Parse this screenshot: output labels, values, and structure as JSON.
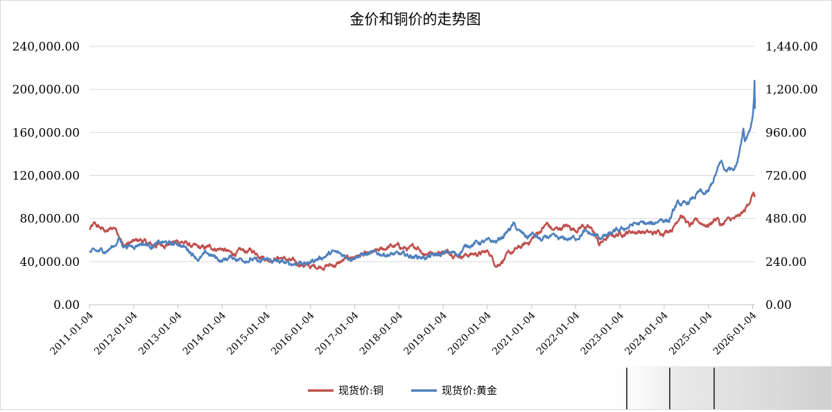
{
  "chart_data": {
    "type": "line",
    "title": "金价和铜价的走势图",
    "y_left": {
      "ticks": [
        "0.00",
        "40,000.00",
        "80,000.00",
        "120,000.00",
        "160,000.00",
        "200,000.00",
        "240,000.00"
      ],
      "range": [
        0,
        240000
      ]
    },
    "y_right": {
      "ticks": [
        "0.00",
        "240.00",
        "480.00",
        "720.00",
        "960.00",
        "1,200.00",
        "1,440.00"
      ],
      "range": [
        0,
        1440
      ]
    },
    "x_ticks": [
      "2011-01-04",
      "2012-01-04",
      "2013-01-04",
      "2014-01-04",
      "2015-01-04",
      "2016-01-04",
      "2017-01-04",
      "2018-01-04",
      "2019-01-04",
      "2020-01-04",
      "2021-01-04",
      "2022-01-04",
      "2023-01-04",
      "2024-01-04",
      "2025-01-04",
      "2026-01-04"
    ],
    "x_range": [
      "2011-01-04",
      "2026-01-24"
    ],
    "grid": true,
    "legend_position": "bottom",
    "series": [
      {
        "name": "现货价:铜",
        "axis": "left",
        "color": "#c0504d",
        "points": [
          [
            "2011-01-04",
            70000
          ],
          [
            "2011-02-15",
            74000
          ],
          [
            "2011-04-01",
            71000
          ],
          [
            "2011-06-01",
            68000
          ],
          [
            "2011-08-01",
            72000
          ],
          [
            "2011-09-20",
            63000
          ],
          [
            "2011-10-10",
            55000
          ],
          [
            "2011-12-01",
            57000
          ],
          [
            "2012-03-01",
            60000
          ],
          [
            "2012-06-01",
            55000
          ],
          [
            "2012-09-01",
            56000
          ],
          [
            "2012-12-01",
            58000
          ],
          [
            "2013-02-01",
            59000
          ],
          [
            "2013-04-15",
            55000
          ],
          [
            "2013-07-01",
            52000
          ],
          [
            "2013-10-01",
            53000
          ],
          [
            "2014-01-04",
            52000
          ],
          [
            "2014-03-20",
            47000
          ],
          [
            "2014-06-01",
            49000
          ],
          [
            "2014-09-01",
            50000
          ],
          [
            "2014-12-01",
            46000
          ],
          [
            "2015-01-20",
            42000
          ],
          [
            "2015-05-01",
            44000
          ],
          [
            "2015-08-01",
            40000
          ],
          [
            "2015-11-01",
            37000
          ],
          [
            "2016-01-10",
            35000
          ],
          [
            "2016-04-01",
            36000
          ],
          [
            "2016-08-01",
            37000
          ],
          [
            "2016-11-10",
            43000
          ],
          [
            "2017-01-04",
            45000
          ],
          [
            "2017-05-01",
            46000
          ],
          [
            "2017-08-01",
            50000
          ],
          [
            "2017-10-15",
            54000
          ],
          [
            "2018-01-04",
            54000
          ],
          [
            "2018-04-01",
            51000
          ],
          [
            "2018-06-10",
            54000
          ],
          [
            "2018-08-01",
            48000
          ],
          [
            "2018-12-01",
            49000
          ],
          [
            "2019-03-01",
            49000
          ],
          [
            "2019-06-01",
            46000
          ],
          [
            "2019-09-01",
            47000
          ],
          [
            "2019-12-01",
            48000
          ],
          [
            "2020-01-15",
            49000
          ],
          [
            "2020-03-20",
            37000
          ],
          [
            "2020-06-01",
            44000
          ],
          [
            "2020-09-01",
            51000
          ],
          [
            "2020-12-01",
            57000
          ],
          [
            "2021-03-01",
            67000
          ],
          [
            "2021-05-10",
            75000
          ],
          [
            "2021-07-01",
            69000
          ],
          [
            "2021-10-15",
            73000
          ],
          [
            "2022-01-04",
            70000
          ],
          [
            "2022-03-07",
            74000
          ],
          [
            "2022-06-01",
            68000
          ],
          [
            "2022-07-15",
            56000
          ],
          [
            "2022-10-01",
            63000
          ],
          [
            "2023-01-04",
            66000
          ],
          [
            "2023-04-01",
            68000
          ],
          [
            "2023-07-01",
            68000
          ],
          [
            "2023-10-01",
            66000
          ],
          [
            "2024-01-04",
            68000
          ],
          [
            "2024-03-20",
            72000
          ],
          [
            "2024-05-20",
            85000
          ],
          [
            "2024-08-01",
            73000
          ],
          [
            "2024-10-01",
            77000
          ],
          [
            "2025-01-04",
            74000
          ],
          [
            "2025-03-25",
            82000
          ],
          [
            "2025-04-10",
            73000
          ],
          [
            "2025-06-01",
            78000
          ],
          [
            "2025-09-01",
            80000
          ],
          [
            "2025-11-01",
            87000
          ],
          [
            "2025-12-15",
            98000
          ],
          [
            "2026-01-10",
            103000
          ],
          [
            "2026-01-24",
            101000
          ]
        ]
      },
      {
        "name": "现货价:黄金",
        "axis": "right",
        "color": "#4f81bd",
        "points": [
          [
            "2011-01-04",
            290
          ],
          [
            "2011-03-01",
            292
          ],
          [
            "2011-06-01",
            305
          ],
          [
            "2011-08-01",
            330
          ],
          [
            "2011-09-05",
            372
          ],
          [
            "2011-10-01",
            335
          ],
          [
            "2011-12-15",
            325
          ],
          [
            "2012-03-01",
            345
          ],
          [
            "2012-06-01",
            330
          ],
          [
            "2012-09-01",
            345
          ],
          [
            "2012-12-01",
            335
          ],
          [
            "2013-01-04",
            345
          ],
          [
            "2013-04-15",
            300
          ],
          [
            "2013-06-28",
            255
          ],
          [
            "2013-09-01",
            285
          ],
          [
            "2013-12-31",
            245
          ],
          [
            "2014-03-15",
            265
          ],
          [
            "2014-06-01",
            255
          ],
          [
            "2014-09-01",
            255
          ],
          [
            "2014-11-15",
            235
          ],
          [
            "2015-01-20",
            250
          ],
          [
            "2015-04-01",
            240
          ],
          [
            "2015-07-20",
            225
          ],
          [
            "2015-10-15",
            240
          ],
          [
            "2015-12-10",
            225
          ],
          [
            "2016-01-20",
            245
          ],
          [
            "2016-07-08",
            290
          ],
          [
            "2016-10-01",
            275
          ],
          [
            "2016-12-20",
            265
          ],
          [
            "2017-01-04",
            275
          ],
          [
            "2017-04-01",
            280
          ],
          [
            "2017-09-08",
            285
          ],
          [
            "2018-01-20",
            275
          ],
          [
            "2018-04-10",
            272
          ],
          [
            "2018-08-15",
            265
          ],
          [
            "2018-12-01",
            275
          ],
          [
            "2019-02-20",
            290
          ],
          [
            "2019-05-01",
            282
          ],
          [
            "2019-08-01",
            335
          ],
          [
            "2019-10-01",
            345
          ],
          [
            "2020-01-10",
            350
          ],
          [
            "2020-03-20",
            350
          ],
          [
            "2020-06-01",
            395
          ],
          [
            "2020-08-07",
            445
          ],
          [
            "2020-10-01",
            400
          ],
          [
            "2020-11-30",
            375
          ],
          [
            "2021-01-04",
            395
          ],
          [
            "2021-03-31",
            355
          ],
          [
            "2021-06-01",
            380
          ],
          [
            "2021-08-10",
            360
          ],
          [
            "2022-01-04",
            372
          ],
          [
            "2022-03-08",
            405
          ],
          [
            "2022-07-20",
            375
          ],
          [
            "2022-09-28",
            385
          ],
          [
            "2022-12-01",
            405
          ],
          [
            "2023-01-04",
            412
          ],
          [
            "2023-05-04",
            450
          ],
          [
            "2023-07-01",
            450
          ],
          [
            "2023-10-05",
            445
          ],
          [
            "2023-12-04",
            480
          ],
          [
            "2024-01-04",
            475
          ],
          [
            "2024-02-14",
            470
          ],
          [
            "2024-03-01",
            490
          ],
          [
            "2024-04-20",
            560
          ],
          [
            "2024-07-01",
            555
          ],
          [
            "2024-10-30",
            630
          ],
          [
            "2024-11-15",
            610
          ],
          [
            "2025-01-04",
            625
          ],
          [
            "2025-04-21",
            800
          ],
          [
            "2025-05-15",
            745
          ],
          [
            "2025-08-01",
            770
          ],
          [
            "2025-09-01",
            800
          ],
          [
            "2025-10-20",
            990
          ],
          [
            "2025-11-01",
            920
          ],
          [
            "2025-12-20",
            1000
          ],
          [
            "2026-01-05",
            1060
          ],
          [
            "2026-01-15",
            1150
          ],
          [
            "2026-01-20",
            1245
          ],
          [
            "2026-01-22",
            1100
          ],
          [
            "2026-01-24",
            1150
          ]
        ]
      }
    ]
  }
}
